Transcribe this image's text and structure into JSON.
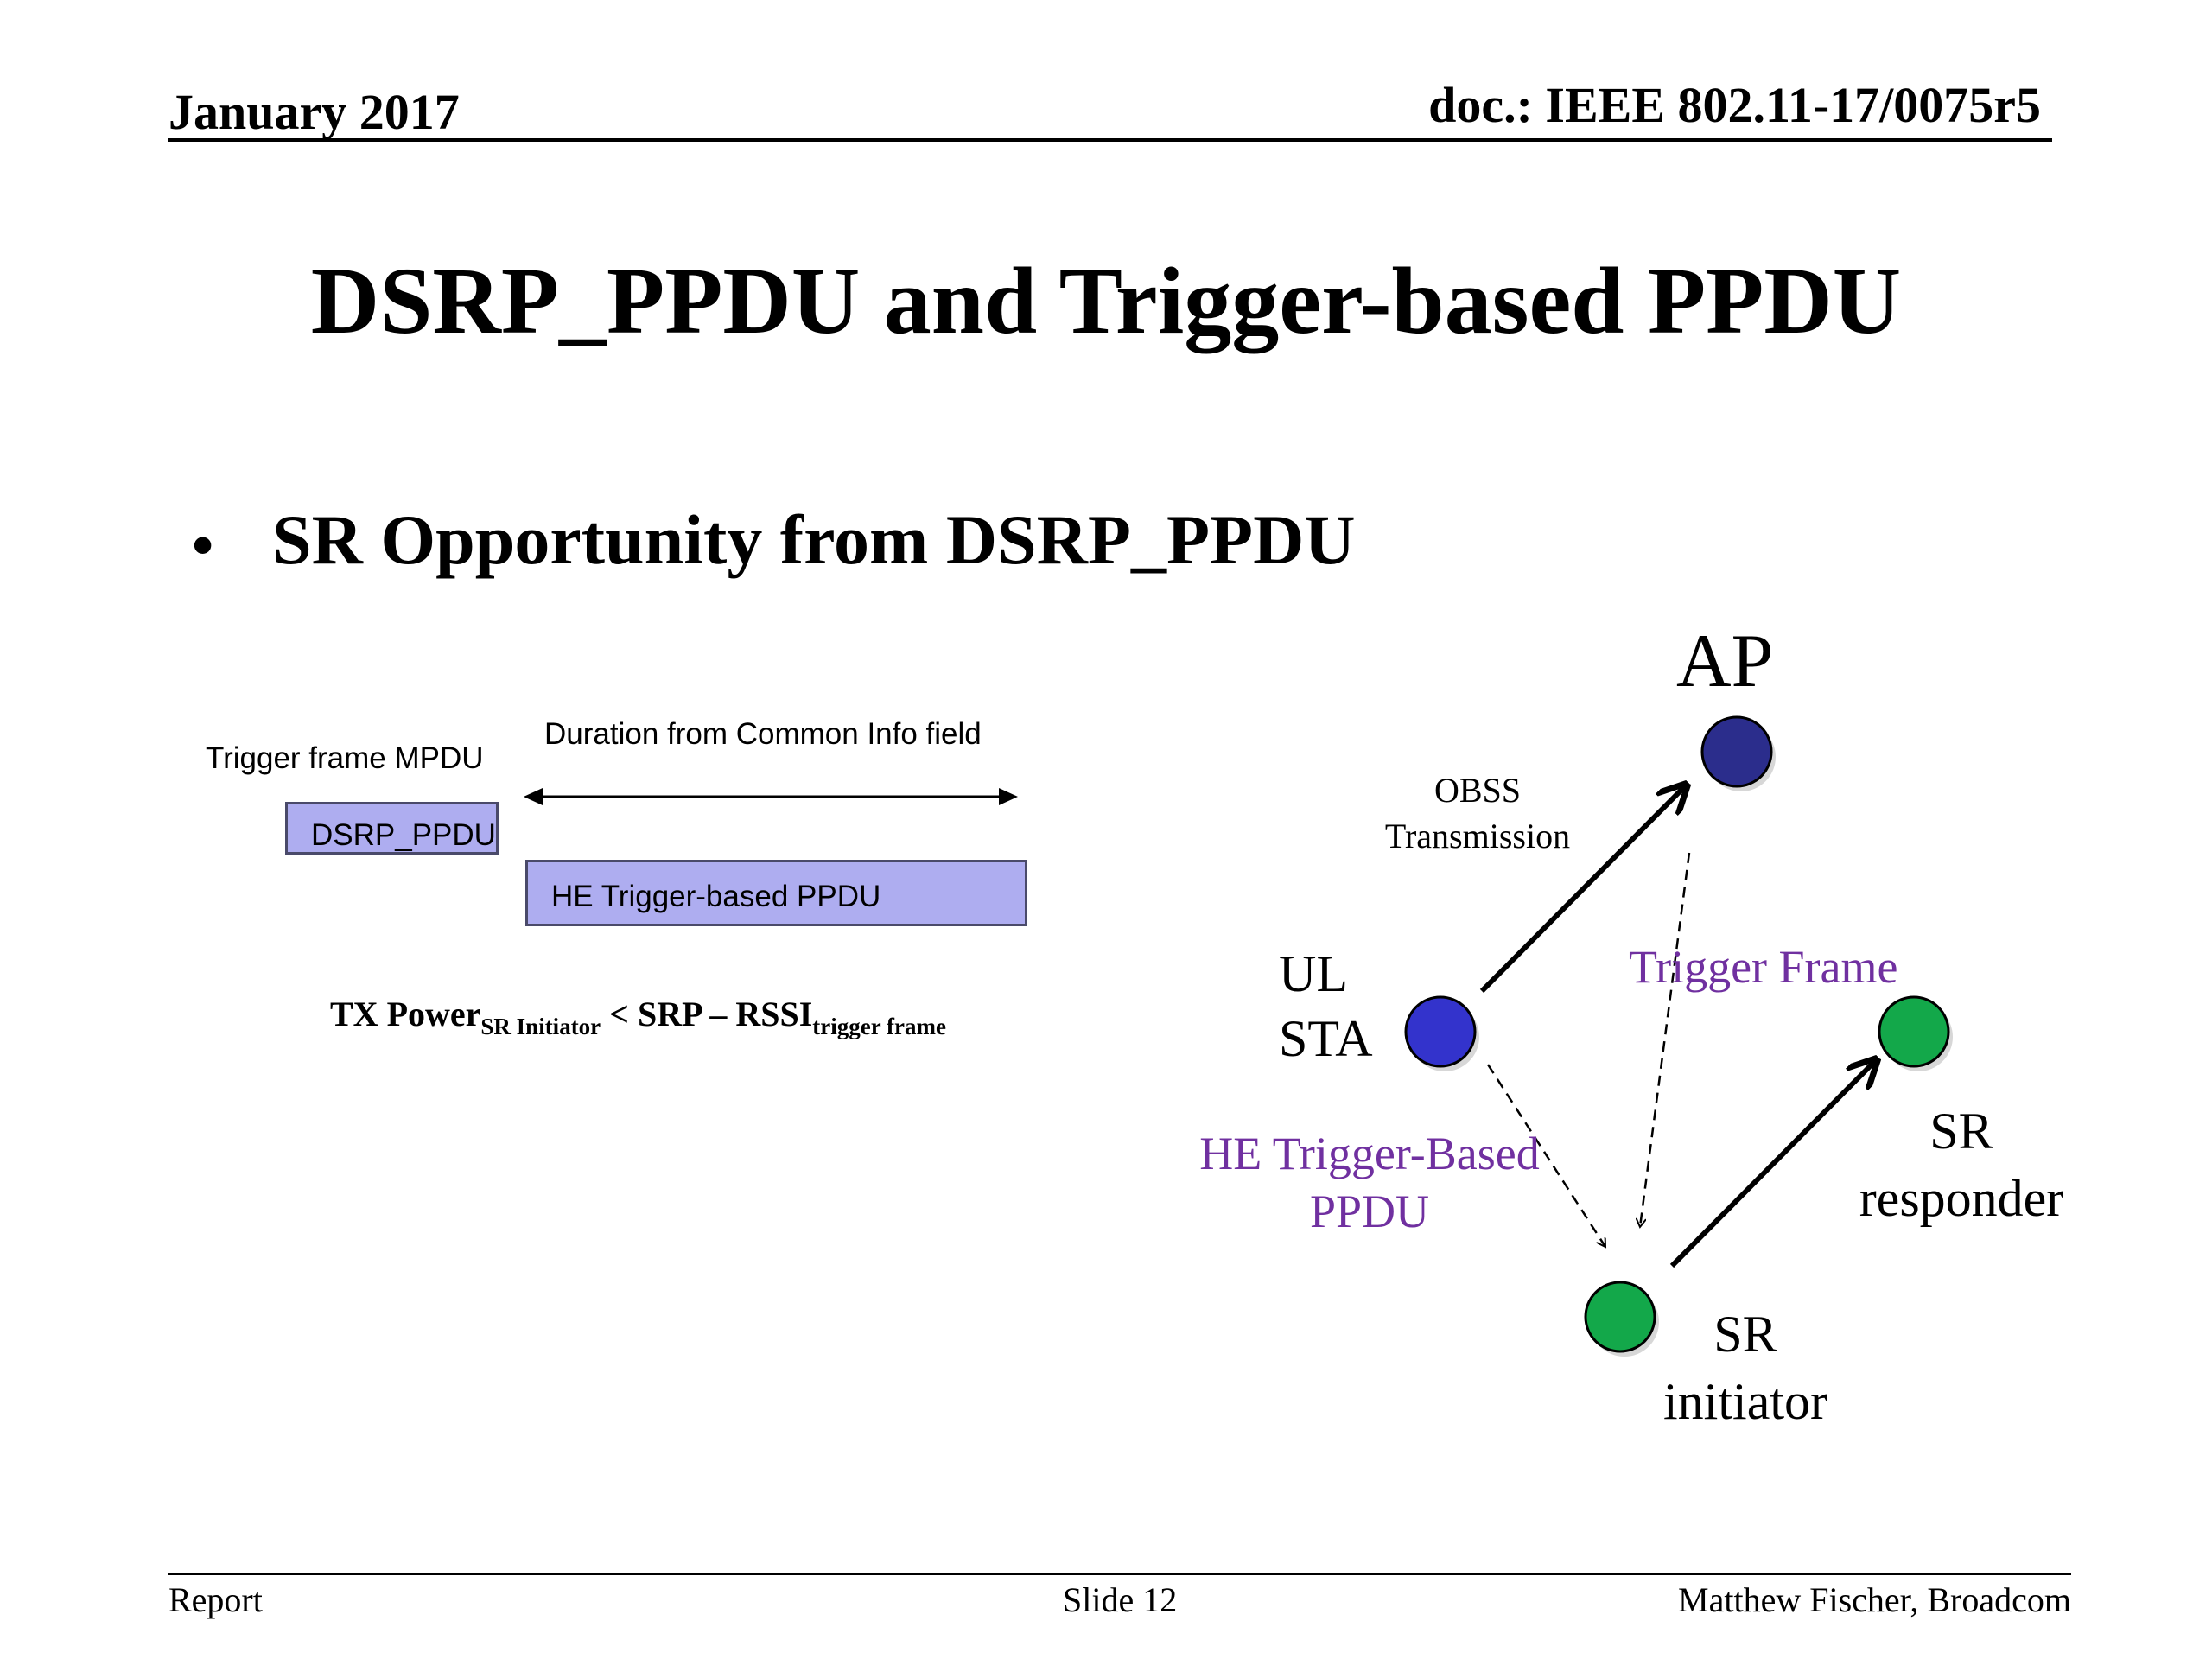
{
  "header": {
    "date": "January 2017",
    "doc": "doc.: IEEE 802.11-17/0075r5"
  },
  "title": "DSRP_PPDU and Trigger-based PPDU",
  "bullet": {
    "symbol": "•",
    "text": "SR Opportunity from DSRP_PPDU"
  },
  "timing": {
    "trigger_label": "Trigger frame MPDU",
    "duration_label": "Duration from Common Info field",
    "dsrp_box": "DSRP_PPDU",
    "he_box": "HE Trigger-based PPDU"
  },
  "formula": {
    "part1": "TX Power",
    "sub1": "SR Initiator",
    "part2": " < SRP – RSSI",
    "sub2": "trigger frame"
  },
  "network": {
    "ap": "AP",
    "obss": "OBSS Transmission",
    "ul_sta_line1": "UL",
    "ul_sta_line2": "STA",
    "trigger_frame": "Trigger Frame",
    "he_tb_line1": "HE Trigger-Based",
    "he_tb_line2": "PPDU",
    "sr_responder_line1": "SR",
    "sr_responder_line2": "responder",
    "sr_initiator_line1": "SR",
    "sr_initiator_line2": "initiator",
    "colors": {
      "ap_node": "#2b2d8c",
      "sta_node": "#3333cc",
      "sr_node": "#13a84a",
      "purple_text": "#7030a0",
      "ppdu_box": "#aeadf0"
    }
  },
  "footer": {
    "left": "Report",
    "center": "Slide 12",
    "right": "Matthew Fischer, Broadcom"
  }
}
